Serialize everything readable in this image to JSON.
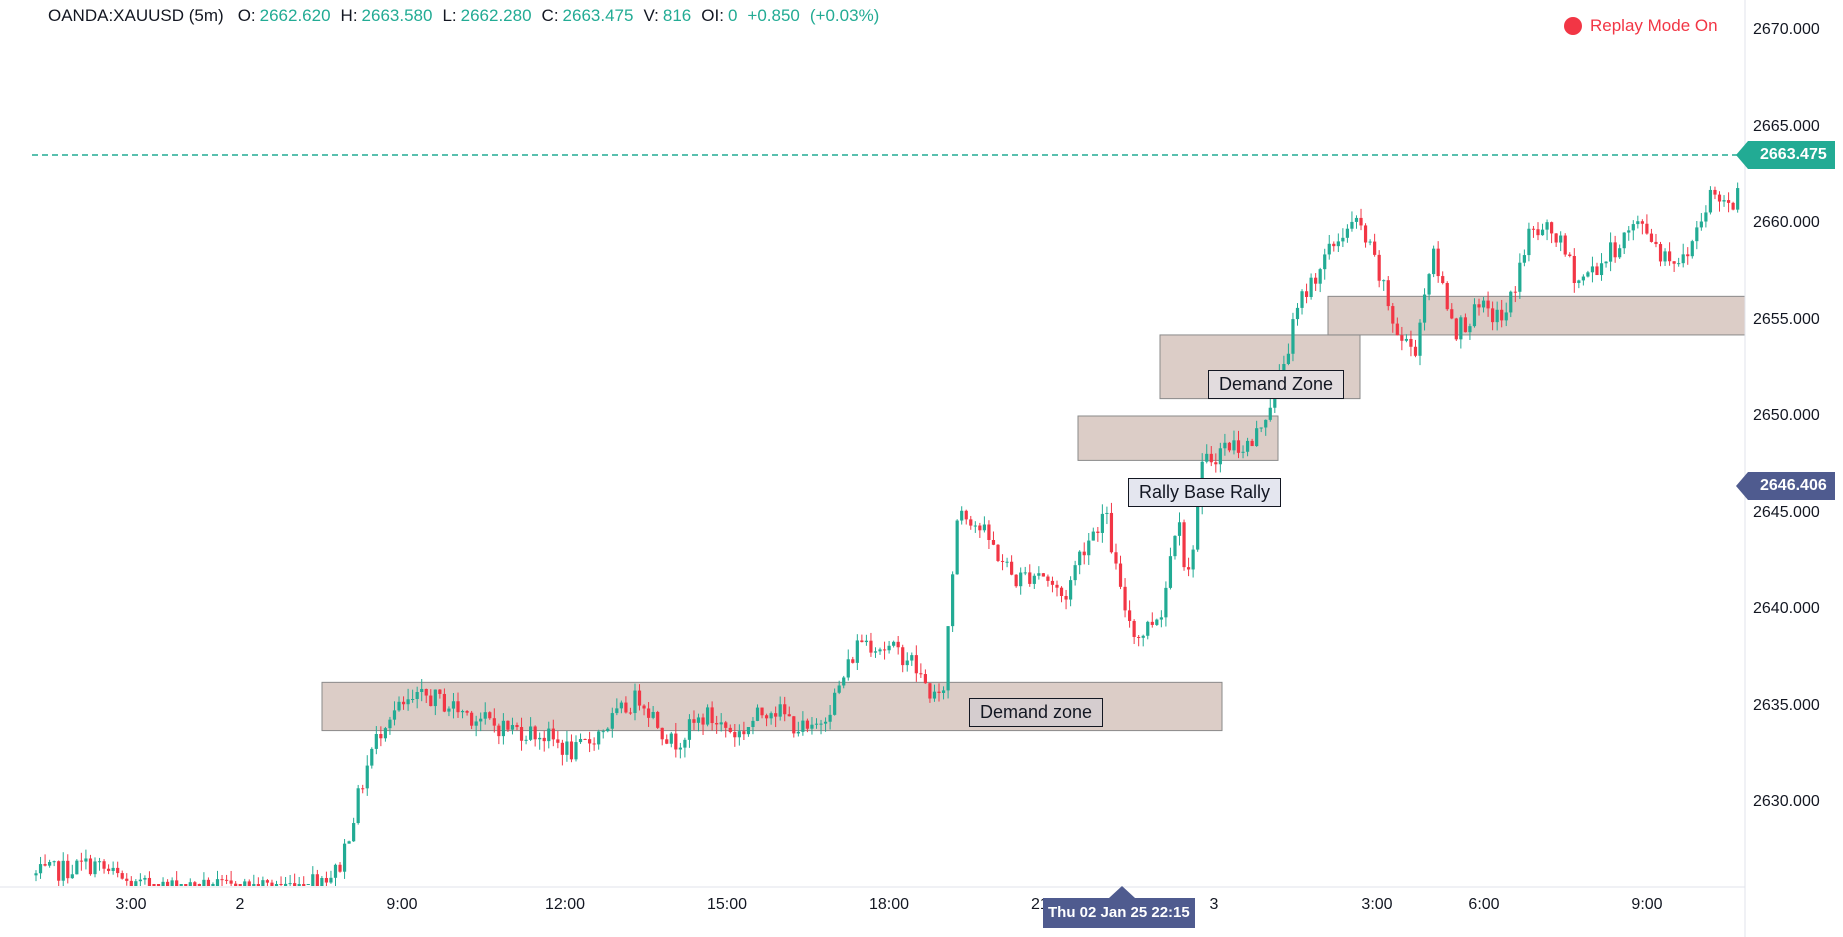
{
  "header": {
    "symbol": "OANDA:XAUUSD (5m)",
    "open_label": "O:",
    "open": "2662.620",
    "high_label": "H:",
    "high": "2663.580",
    "low_label": "L:",
    "low": "2662.280",
    "close_label": "C:",
    "close": "2663.475",
    "volume_label": "V:",
    "volume": "816",
    "oi_label": "OI:",
    "oi": "0",
    "change": "+0.850",
    "change_pct": "(+0.03%)"
  },
  "replay": {
    "label": "Replay Mode On"
  },
  "price_labels": {
    "current": "2663.475",
    "crosshair": "2646.406"
  },
  "crosshair_time": "Thu 02 Jan 25 22:15",
  "annotations": [
    {
      "label": "Demand zone"
    },
    {
      "label": "Rally Base Rally"
    },
    {
      "label": "Demand Zone"
    }
  ],
  "colors": {
    "up": "#22ab94",
    "down": "#f23645",
    "zone": "#d6c4bd",
    "accent": "#22ab94",
    "crosshair": "#4f5b8f"
  },
  "chart_data": {
    "type": "candlestick",
    "symbol": "OANDA:XAUUSD",
    "timeframe": "5m",
    "x_ticks": [
      "3:00",
      "2",
      "9:00",
      "12:00",
      "15:00",
      "18:00",
      "21:00",
      "3",
      "3:00",
      "6:00",
      "9:00"
    ],
    "y_ticks": [
      "2630.000",
      "2635.000",
      "2640.000",
      "2645.000",
      "2650.000",
      "2655.000",
      "2660.000",
      "2665.000",
      "2670.000"
    ],
    "ylim": [
      2625.5,
      2670.5
    ],
    "current_price": 2663.475,
    "crosshair_price": 2646.406,
    "path": [
      [
        0.0,
        2626.2
      ],
      [
        0.035,
        2626.8
      ],
      [
        0.06,
        2625.6
      ],
      [
        0.12,
        2625.5
      ],
      [
        0.16,
        2625.7
      ],
      [
        0.185,
        2626.4
      ],
      [
        0.205,
        2632.5
      ],
      [
        0.215,
        2634.5
      ],
      [
        0.24,
        2635.5
      ],
      [
        0.28,
        2634.0
      ],
      [
        0.31,
        2633.5
      ],
      [
        0.33,
        2632.5
      ],
      [
        0.35,
        2634.0
      ],
      [
        0.37,
        2635.5
      ],
      [
        0.39,
        2633.0
      ],
      [
        0.41,
        2634.5
      ],
      [
        0.43,
        2633.5
      ],
      [
        0.45,
        2635.0
      ],
      [
        0.465,
        2634.0
      ],
      [
        0.475,
        2633.5
      ],
      [
        0.49,
        2635.5
      ],
      [
        0.505,
        2638.5
      ],
      [
        0.52,
        2638.0
      ],
      [
        0.535,
        2637.5
      ],
      [
        0.545,
        2636.0
      ],
      [
        0.555,
        2635.0
      ],
      [
        0.565,
        2645.5
      ],
      [
        0.58,
        2644.0
      ],
      [
        0.6,
        2641.5
      ],
      [
        0.615,
        2642.0
      ],
      [
        0.63,
        2640.5
      ],
      [
        0.64,
        2643.0
      ],
      [
        0.655,
        2645.0
      ],
      [
        0.665,
        2640.5
      ],
      [
        0.675,
        2638.5
      ],
      [
        0.69,
        2640.0
      ],
      [
        0.7,
        2645.5
      ],
      [
        0.705,
        2641.0
      ],
      [
        0.715,
        2647.5
      ],
      [
        0.73,
        2648.5
      ],
      [
        0.745,
        2648.5
      ],
      [
        0.76,
        2651.5
      ],
      [
        0.775,
        2656.0
      ],
      [
        0.785,
        2657.5
      ],
      [
        0.8,
        2659.5
      ],
      [
        0.81,
        2660.0
      ],
      [
        0.82,
        2658.0
      ],
      [
        0.835,
        2654.0
      ],
      [
        0.845,
        2653.5
      ],
      [
        0.855,
        2658.5
      ],
      [
        0.87,
        2654.5
      ],
      [
        0.885,
        2655.5
      ],
      [
        0.9,
        2655.0
      ],
      [
        0.915,
        2659.5
      ],
      [
        0.93,
        2659.5
      ],
      [
        0.945,
        2657.0
      ],
      [
        0.96,
        2658.0
      ],
      [
        0.975,
        2659.5
      ],
      [
        0.985,
        2660.0
      ],
      [
        0.995,
        2658.5
      ],
      [
        1.01,
        2658.0
      ],
      [
        1.025,
        2661.5
      ],
      [
        1.04,
        2661.0
      ],
      [
        1.045,
        2663.5
      ]
    ],
    "zones": [
      {
        "label": "Demand zone",
        "y_top": 2636.2,
        "y_bottom": 2633.7
      },
      {
        "label": "Rally Base Rally",
        "y_top": 2650.0,
        "y_bottom": 2647.7
      },
      {
        "label": "Demand Zone",
        "y_top": 2654.2,
        "y_bottom": 2650.9
      },
      {
        "label": "",
        "y_top": 2656.2,
        "y_bottom": 2654.2
      }
    ]
  }
}
